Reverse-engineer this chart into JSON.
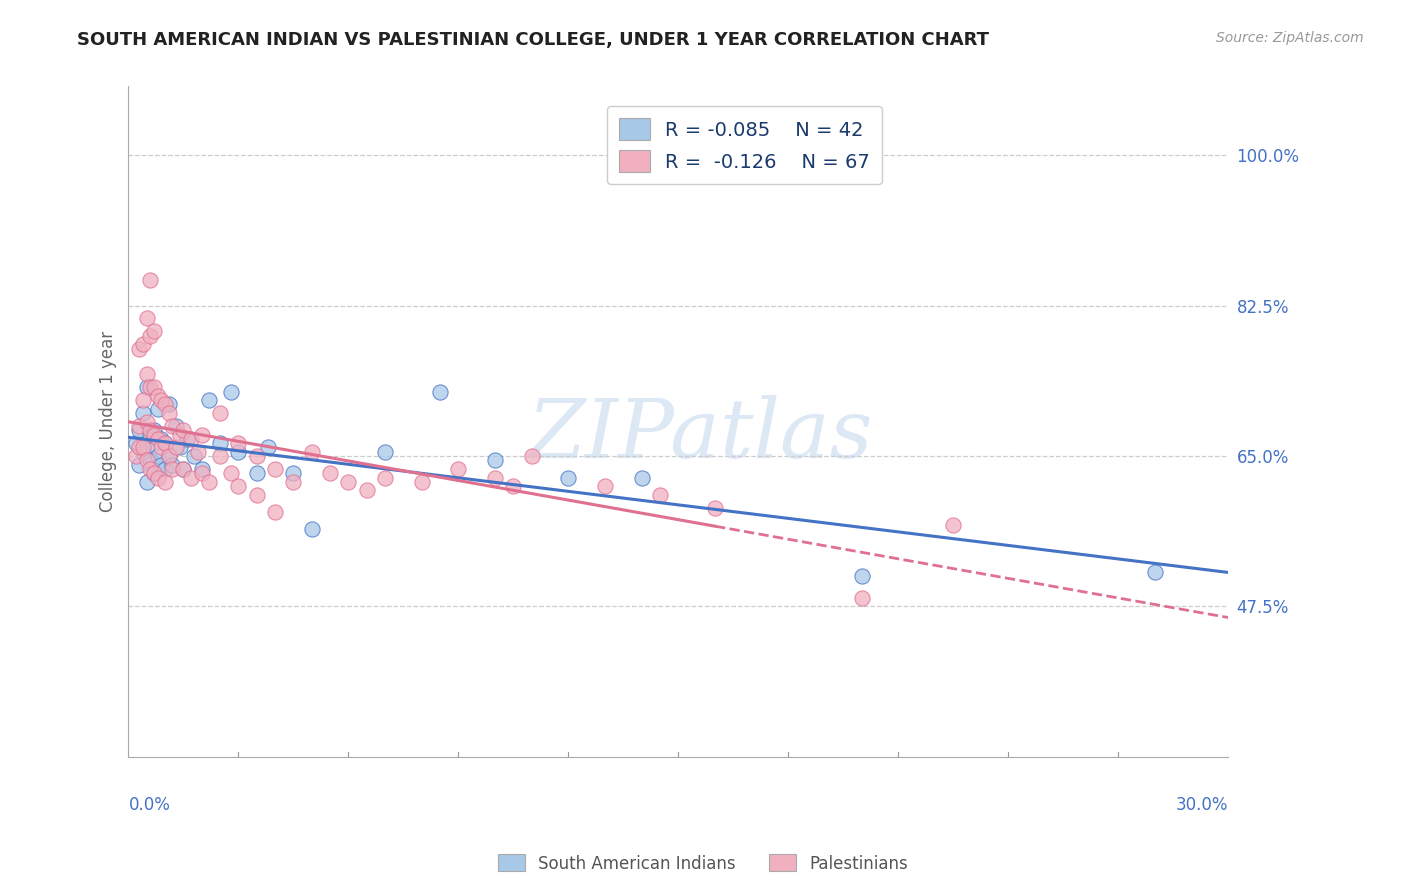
{
  "title": "SOUTH AMERICAN INDIAN VS PALESTINIAN COLLEGE, UNDER 1 YEAR CORRELATION CHART",
  "source": "Source: ZipAtlas.com",
  "ylabel": "College, Under 1 year",
  "yticks": [
    47.5,
    65.0,
    82.5,
    100.0
  ],
  "xlim": [
    0.0,
    30.0
  ],
  "ylim": [
    30.0,
    108.0
  ],
  "legend_r1": "R = -0.085",
  "legend_n1": "N = 42",
  "legend_r2": "R = -0.126",
  "legend_n2": "N = 67",
  "color_blue": "#a8c8e8",
  "color_pink": "#f0b0c0",
  "color_blue_line": "#4472c4",
  "color_pink_line": "#e07090",
  "watermark": "ZIPatlas",
  "blue_points": [
    [
      0.2,
      66.5
    ],
    [
      0.3,
      64.0
    ],
    [
      0.3,
      68.0
    ],
    [
      0.4,
      65.5
    ],
    [
      0.4,
      70.0
    ],
    [
      0.5,
      62.0
    ],
    [
      0.5,
      66.0
    ],
    [
      0.5,
      73.0
    ],
    [
      0.6,
      64.5
    ],
    [
      0.6,
      67.5
    ],
    [
      0.7,
      63.0
    ],
    [
      0.7,
      68.0
    ],
    [
      0.8,
      65.0
    ],
    [
      0.8,
      70.5
    ],
    [
      0.9,
      64.0
    ],
    [
      0.9,
      67.0
    ],
    [
      1.0,
      63.5
    ],
    [
      1.0,
      66.5
    ],
    [
      1.1,
      65.0
    ],
    [
      1.1,
      71.0
    ],
    [
      1.2,
      64.0
    ],
    [
      1.3,
      68.5
    ],
    [
      1.4,
      66.0
    ],
    [
      1.5,
      63.5
    ],
    [
      1.6,
      67.0
    ],
    [
      1.8,
      65.0
    ],
    [
      2.0,
      63.5
    ],
    [
      2.2,
      71.5
    ],
    [
      2.5,
      66.5
    ],
    [
      2.8,
      72.5
    ],
    [
      3.0,
      65.5
    ],
    [
      3.5,
      63.0
    ],
    [
      3.8,
      66.0
    ],
    [
      4.5,
      63.0
    ],
    [
      5.0,
      56.5
    ],
    [
      7.0,
      65.5
    ],
    [
      8.5,
      72.5
    ],
    [
      10.0,
      64.5
    ],
    [
      12.0,
      62.5
    ],
    [
      14.0,
      62.5
    ],
    [
      20.0,
      51.0
    ],
    [
      28.0,
      51.5
    ]
  ],
  "pink_points": [
    [
      0.2,
      65.0
    ],
    [
      0.3,
      66.0
    ],
    [
      0.3,
      68.5
    ],
    [
      0.3,
      77.5
    ],
    [
      0.4,
      66.0
    ],
    [
      0.4,
      71.5
    ],
    [
      0.4,
      78.0
    ],
    [
      0.5,
      64.5
    ],
    [
      0.5,
      69.0
    ],
    [
      0.5,
      74.5
    ],
    [
      0.5,
      81.0
    ],
    [
      0.6,
      63.5
    ],
    [
      0.6,
      68.0
    ],
    [
      0.6,
      73.0
    ],
    [
      0.6,
      79.0
    ],
    [
      0.6,
      85.5
    ],
    [
      0.7,
      63.0
    ],
    [
      0.7,
      67.5
    ],
    [
      0.7,
      73.0
    ],
    [
      0.7,
      79.5
    ],
    [
      0.8,
      62.5
    ],
    [
      0.8,
      67.0
    ],
    [
      0.8,
      72.0
    ],
    [
      0.9,
      66.0
    ],
    [
      0.9,
      71.5
    ],
    [
      1.0,
      62.0
    ],
    [
      1.0,
      66.5
    ],
    [
      1.0,
      71.0
    ],
    [
      1.1,
      65.0
    ],
    [
      1.1,
      70.0
    ],
    [
      1.2,
      63.5
    ],
    [
      1.2,
      68.5
    ],
    [
      1.3,
      66.0
    ],
    [
      1.4,
      67.5
    ],
    [
      1.5,
      63.5
    ],
    [
      1.5,
      68.0
    ],
    [
      1.7,
      62.5
    ],
    [
      1.7,
      67.0
    ],
    [
      1.9,
      65.5
    ],
    [
      2.0,
      63.0
    ],
    [
      2.0,
      67.5
    ],
    [
      2.2,
      62.0
    ],
    [
      2.5,
      65.0
    ],
    [
      2.5,
      70.0
    ],
    [
      2.8,
      63.0
    ],
    [
      3.0,
      66.5
    ],
    [
      3.0,
      61.5
    ],
    [
      3.5,
      65.0
    ],
    [
      3.5,
      60.5
    ],
    [
      4.0,
      63.5
    ],
    [
      4.0,
      58.5
    ],
    [
      4.5,
      62.0
    ],
    [
      5.0,
      65.5
    ],
    [
      5.5,
      63.0
    ],
    [
      6.0,
      62.0
    ],
    [
      6.5,
      61.0
    ],
    [
      7.0,
      62.5
    ],
    [
      8.0,
      62.0
    ],
    [
      9.0,
      63.5
    ],
    [
      10.0,
      62.5
    ],
    [
      10.5,
      61.5
    ],
    [
      11.0,
      65.0
    ],
    [
      13.0,
      61.5
    ],
    [
      14.5,
      60.5
    ],
    [
      16.0,
      59.0
    ],
    [
      20.0,
      48.5
    ],
    [
      22.5,
      57.0
    ]
  ]
}
